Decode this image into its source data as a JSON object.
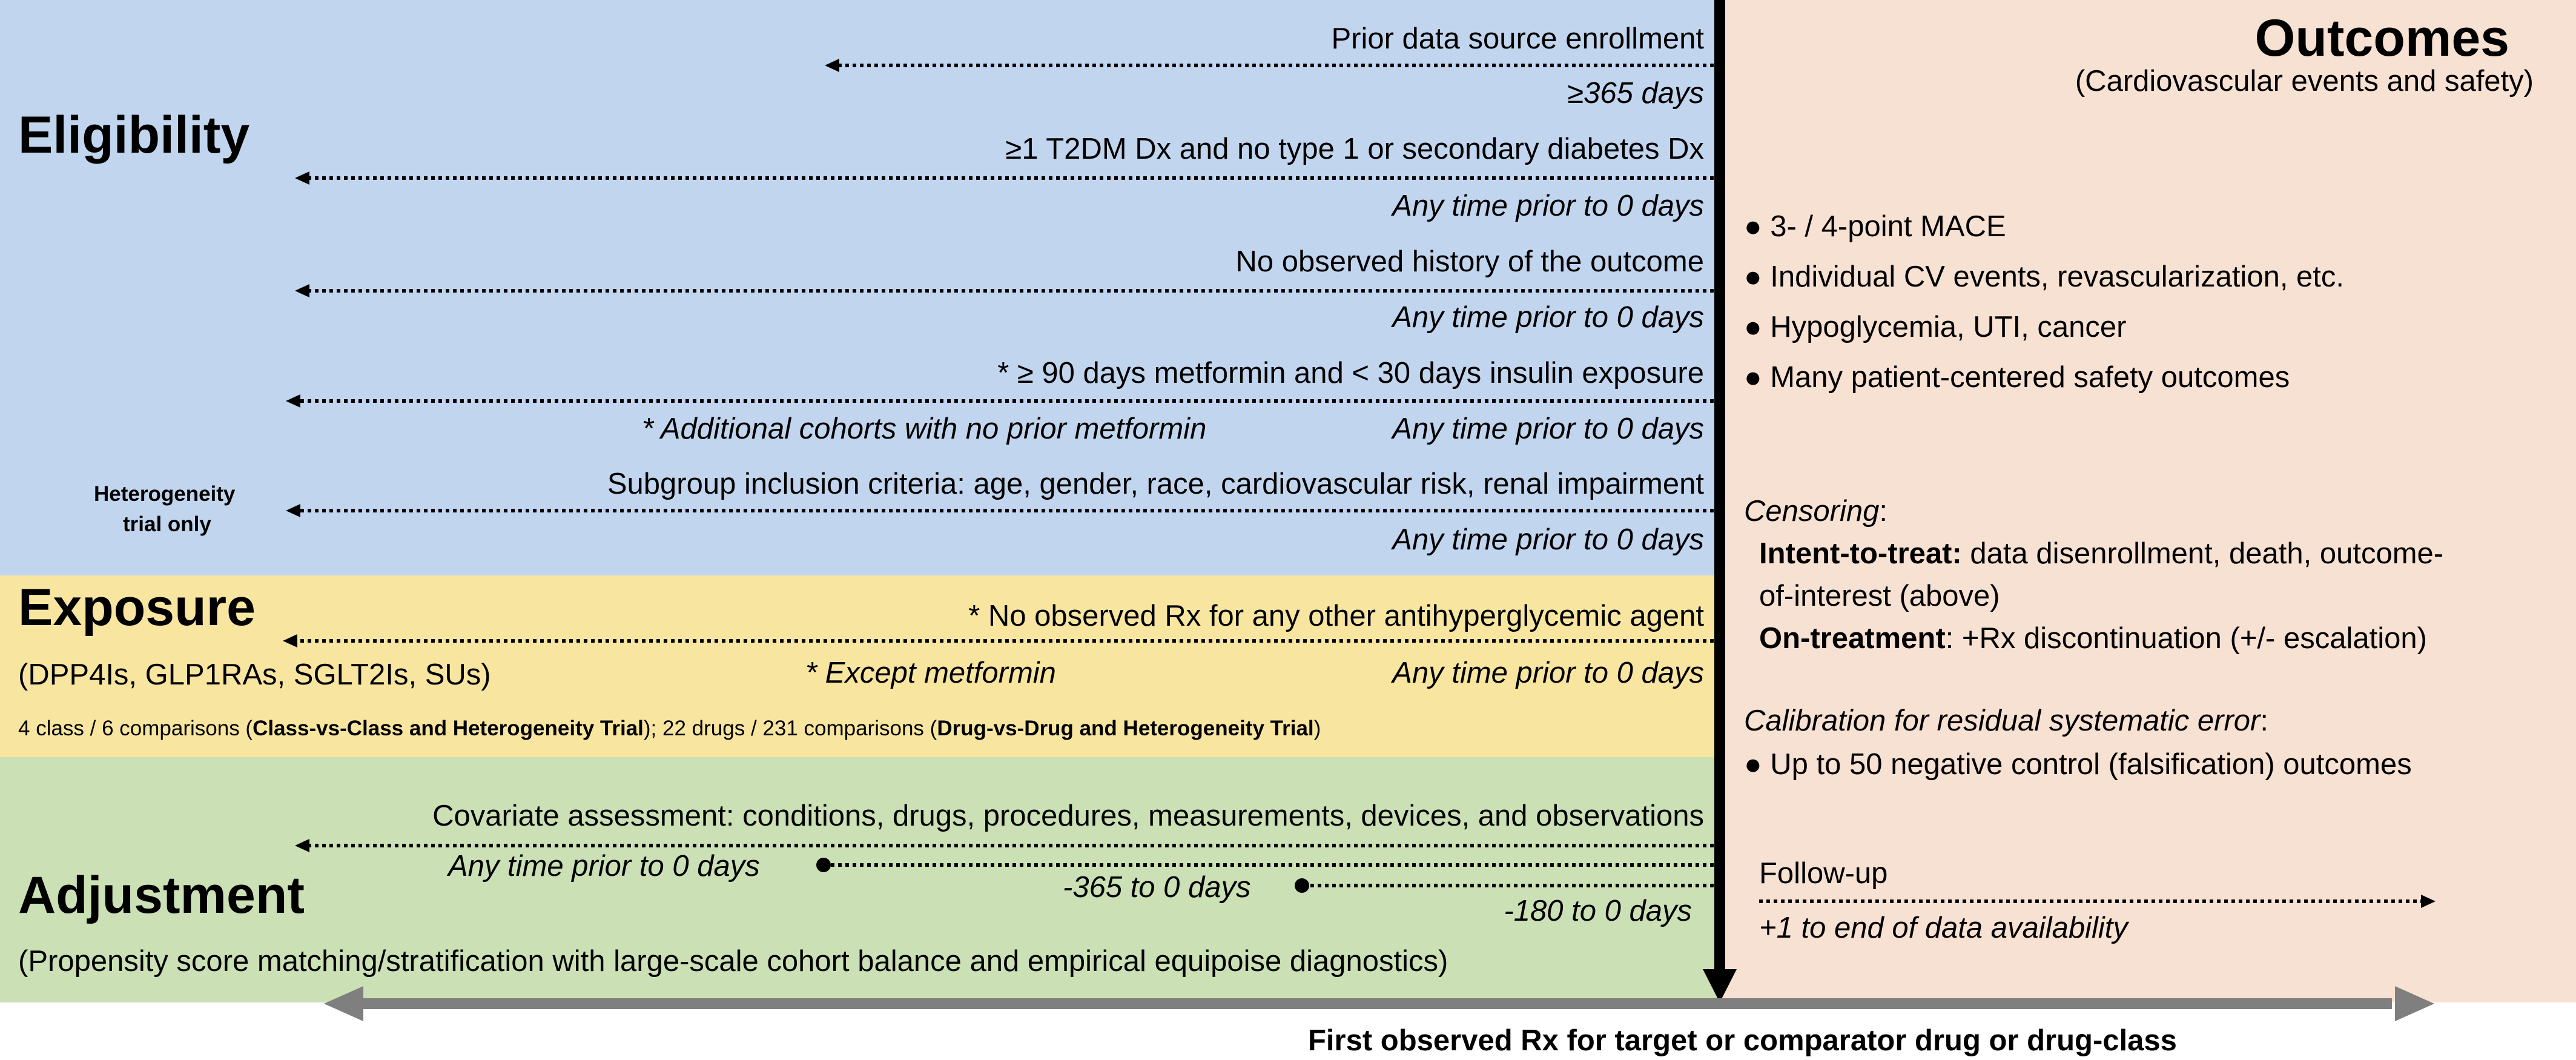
{
  "colors": {
    "eligibility_bg": "#c2d5ee",
    "exposure_bg": "#f8e6a0",
    "adjustment_bg": "#cce0b6",
    "outcomes_bg": "#f7e1d2",
    "timeline_arrow": "#7f7f7f",
    "index_line": "#000000"
  },
  "eligibility": {
    "title": "Eligibility",
    "criteria": [
      {
        "label": "Prior data source enrollment",
        "window": "≥365 days"
      },
      {
        "label": "≥1 T2DM Dx and no type 1 or secondary diabetes Dx",
        "window": "Any time prior to 0 days"
      },
      {
        "label": "No observed history of the outcome",
        "window": "Any time prior to 0 days"
      },
      {
        "label": "* ≥ 90 days metformin and < 30 days insulin exposure",
        "window": "Any time prior to 0 days",
        "note": "* Additional cohorts with no prior metformin"
      },
      {
        "label": "Subgroup inclusion criteria: age, gender, race, cardiovascular risk, renal impairment",
        "window": "Any time prior to 0 days"
      }
    ],
    "heterogeneity_line1": "Heterogeneity",
    "heterogeneity_line2": "trial only"
  },
  "exposure": {
    "title": "Exposure",
    "subtitle": "(DPP4Is, GLP1RAs, SGLT2Is, SUs)",
    "criterion": "* No observed Rx for any other antihyperglycemic agent",
    "note": "* Except metformin",
    "window": "Any time prior to 0 days",
    "comparisons": {
      "p1": "4 class / 6 comparisons (",
      "b1": "Class-vs-Class  and Heterogeneity Trial",
      "p2": "); 22 drugs / 231 comparisons (",
      "b2": "Drug-vs-Drug and Heterogeneity Trial",
      "p3": ")"
    }
  },
  "adjustment": {
    "title": "Adjustment",
    "subtitle": "(Propensity score matching/stratification with large-scale cohort balance and empirical equipoise diagnostics)",
    "covariate_label": "Covariate assessment: conditions, drugs, procedures, measurements, devices, and observations",
    "windows": [
      "Any time prior to 0 days",
      "-365 to 0 days",
      "-180 to 0 days"
    ]
  },
  "outcomes": {
    "title": "Outcomes",
    "subtitle": "(Cardiovascular events and safety)",
    "bullet_char": "●",
    "bullets": [
      "3- / 4-point MACE",
      "Individual CV events, revascularization, etc.",
      "Hypoglycemia, UTI, cancer",
      "Many patient-centered safety outcomes"
    ],
    "censoring": {
      "heading": "Censoring",
      "colon": ":",
      "itt_label": "Intent-to-treat:",
      "itt_text_1": " data disenrollment, death, outcome-",
      "itt_text_2": "of-interest (above)",
      "ot_label": "On-treatment",
      "ot_text": ": +Rx discontinuation (+/- escalation)"
    },
    "calibration": {
      "heading": "Calibration for residual systematic error",
      "colon": ":",
      "bullet": "Up to 50 negative control (falsification) outcomes"
    },
    "followup": {
      "label": "Follow-up",
      "window": "+1 to end of data availability"
    }
  },
  "timeline": {
    "index_label": "First observed Rx for target or comparator drug or drug-class"
  }
}
